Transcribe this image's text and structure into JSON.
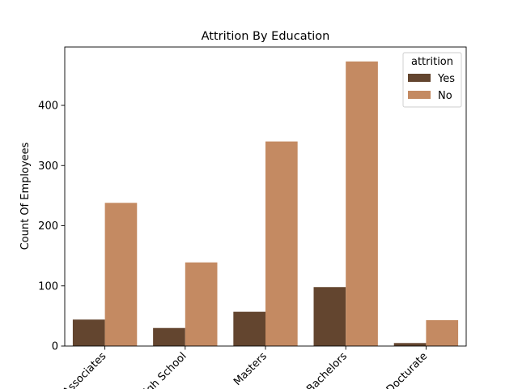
{
  "chart_data": {
    "type": "bar",
    "title": "Attrition By Education",
    "xlabel": "",
    "ylabel": "Count Of Employees",
    "categories": [
      "Associates",
      "High School",
      "Masters",
      "Bachelors",
      "Docturate"
    ],
    "series": [
      {
        "name": "Yes",
        "values": [
          44,
          30,
          57,
          98,
          5
        ],
        "color": "#63452f"
      },
      {
        "name": "No",
        "values": [
          238,
          139,
          340,
          473,
          43
        ],
        "color": "#c48a62"
      }
    ],
    "ylim": [
      0,
      497
    ],
    "yticks": [
      0,
      100,
      200,
      300,
      400
    ],
    "legend": {
      "title": "attrition",
      "placement": "top-right"
    },
    "grid": false
  }
}
